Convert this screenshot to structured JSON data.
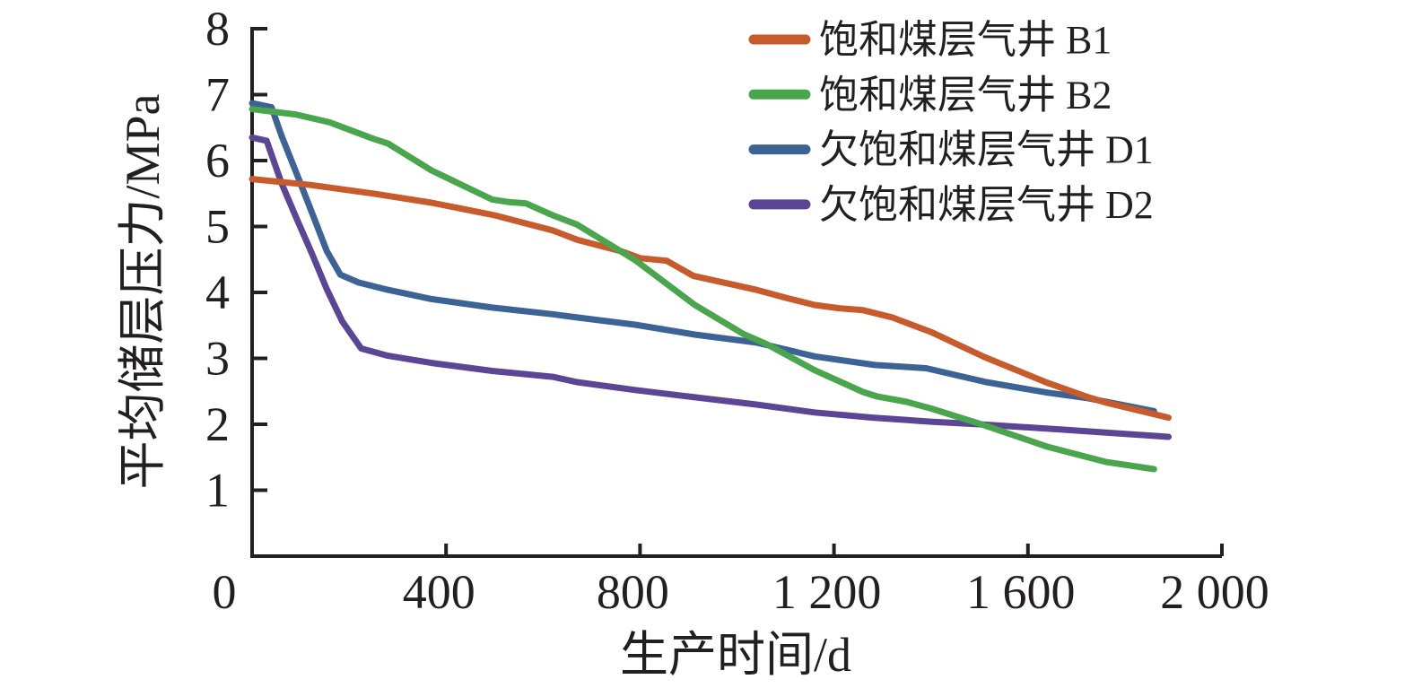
{
  "chart_data": {
    "type": "line",
    "title": "",
    "xlabel": "生产时间/d",
    "ylabel": "平均储层压力/MPa",
    "xlim": [
      0,
      2000
    ],
    "ylim": [
      0,
      8
    ],
    "x_ticks": [
      0,
      400,
      800,
      1200,
      1600,
      2000
    ],
    "x_tick_labels": [
      "0",
      "400",
      "800",
      "1 200",
      "1 600",
      "2 000"
    ],
    "y_ticks": [
      1,
      2,
      3,
      4,
      5,
      6,
      7,
      8
    ],
    "y_tick_labels": [
      "1",
      "2",
      "3",
      "4",
      "5",
      "6",
      "7",
      "8"
    ],
    "grid": false,
    "legend_position": "top-right",
    "series": [
      {
        "name": "饱和煤层气井 B1",
        "color": "#C85B2B",
        "points": [
          [
            0,
            5.72
          ],
          [
            120,
            5.63
          ],
          [
            250,
            5.5
          ],
          [
            370,
            5.36
          ],
          [
            500,
            5.17
          ],
          [
            620,
            4.94
          ],
          [
            670,
            4.8
          ],
          [
            763,
            4.62
          ],
          [
            800,
            4.52
          ],
          [
            855,
            4.48
          ],
          [
            910,
            4.25
          ],
          [
            1040,
            4.04
          ],
          [
            1100,
            3.92
          ],
          [
            1160,
            3.81
          ],
          [
            1210,
            3.76
          ],
          [
            1260,
            3.73
          ],
          [
            1320,
            3.62
          ],
          [
            1400,
            3.4
          ],
          [
            1510,
            3.02
          ],
          [
            1640,
            2.63
          ],
          [
            1720,
            2.42
          ],
          [
            1760,
            2.33
          ],
          [
            1890,
            2.1
          ]
        ]
      },
      {
        "name": "饱和煤层气井 B2",
        "color": "#4AA64C",
        "points": [
          [
            0,
            6.78
          ],
          [
            90,
            6.7
          ],
          [
            160,
            6.58
          ],
          [
            250,
            6.33
          ],
          [
            280,
            6.26
          ],
          [
            370,
            5.85
          ],
          [
            495,
            5.41
          ],
          [
            530,
            5.37
          ],
          [
            565,
            5.35
          ],
          [
            620,
            5.17
          ],
          [
            670,
            5.03
          ],
          [
            790,
            4.49
          ],
          [
            913,
            3.81
          ],
          [
            1013,
            3.37
          ],
          [
            1060,
            3.22
          ],
          [
            1160,
            2.82
          ],
          [
            1260,
            2.49
          ],
          [
            1290,
            2.42
          ],
          [
            1350,
            2.34
          ],
          [
            1400,
            2.24
          ],
          [
            1500,
            2.01
          ],
          [
            1640,
            1.66
          ],
          [
            1760,
            1.43
          ],
          [
            1860,
            1.32
          ]
        ]
      },
      {
        "name": "欠饱和煤层气井 D1",
        "color": "#3C6396",
        "points": [
          [
            0,
            6.87
          ],
          [
            40,
            6.81
          ],
          [
            61,
            6.37
          ],
          [
            93,
            5.78
          ],
          [
            124,
            5.2
          ],
          [
            154,
            4.63
          ],
          [
            182,
            4.27
          ],
          [
            220,
            4.15
          ],
          [
            280,
            4.04
          ],
          [
            370,
            3.9
          ],
          [
            495,
            3.77
          ],
          [
            620,
            3.67
          ],
          [
            670,
            3.62
          ],
          [
            790,
            3.51
          ],
          [
            913,
            3.36
          ],
          [
            1040,
            3.24
          ],
          [
            1160,
            3.03
          ],
          [
            1284,
            2.9
          ],
          [
            1390,
            2.85
          ],
          [
            1514,
            2.64
          ],
          [
            1640,
            2.48
          ],
          [
            1720,
            2.4
          ],
          [
            1860,
            2.2
          ]
        ]
      },
      {
        "name": "欠饱和煤层气井 D2",
        "color": "#5A4695",
        "points": [
          [
            0,
            6.35
          ],
          [
            30,
            6.3
          ],
          [
            61,
            5.65
          ],
          [
            93,
            5.1
          ],
          [
            124,
            4.58
          ],
          [
            154,
            4.05
          ],
          [
            186,
            3.56
          ],
          [
            225,
            3.15
          ],
          [
            280,
            3.04
          ],
          [
            370,
            2.93
          ],
          [
            495,
            2.81
          ],
          [
            620,
            2.72
          ],
          [
            670,
            2.64
          ],
          [
            790,
            2.52
          ],
          [
            913,
            2.41
          ],
          [
            1040,
            2.3
          ],
          [
            1160,
            2.18
          ],
          [
            1280,
            2.1
          ],
          [
            1400,
            2.04
          ],
          [
            1500,
            2.0
          ],
          [
            1670,
            1.92
          ],
          [
            1890,
            1.81
          ]
        ]
      }
    ]
  },
  "colors": {
    "axis": "#231F20",
    "text": "#231F20",
    "background": "#FFFFFF"
  }
}
